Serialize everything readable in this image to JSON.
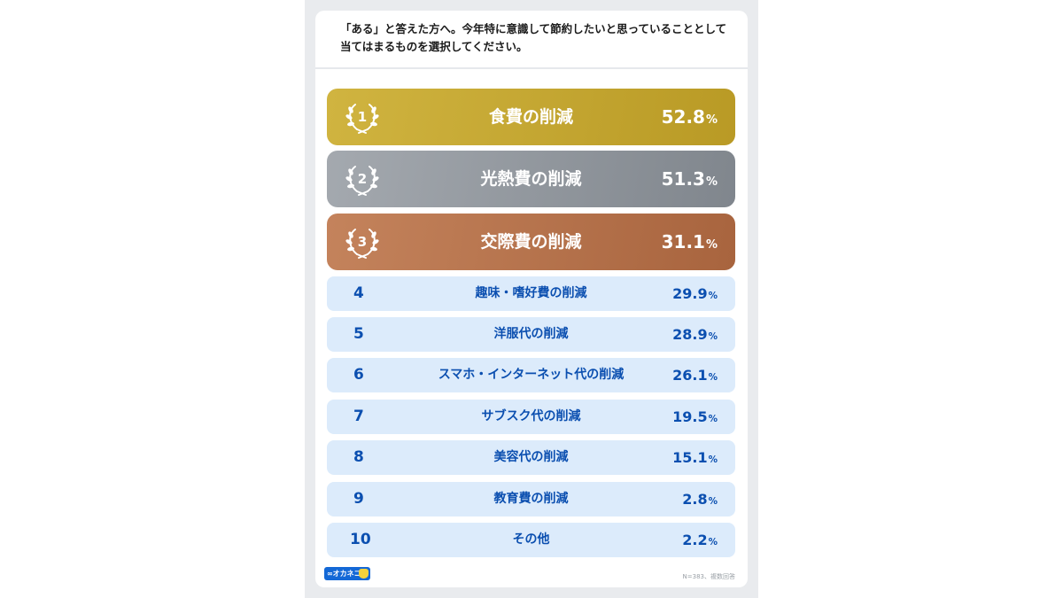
{
  "question": "「ある」と答えた方へ。今年特に意識して節約したいと思っていることとして当てはまるものを選択してください。",
  "chart_data": {
    "type": "bar",
    "categories": [
      "食費の削減",
      "光熱費の削減",
      "交際費の削減",
      "趣味・嗜好費の削減",
      "洋服代の削減",
      "スマホ・インターネット代の削減",
      "サブスク代の削減",
      "美容代の削減",
      "教育費の削減",
      "その他"
    ],
    "values": [
      52.8,
      51.3,
      31.1,
      29.9,
      28.9,
      26.1,
      19.5,
      15.1,
      2.8,
      2.2
    ],
    "unit": "%"
  },
  "rows": [
    {
      "rank": "1",
      "label": "食費の削減",
      "value": "52.8",
      "unit": "%"
    },
    {
      "rank": "2",
      "label": "光熱費の削減",
      "value": "51.3",
      "unit": "%"
    },
    {
      "rank": "3",
      "label": "交際費の削減",
      "value": "31.1",
      "unit": "%"
    },
    {
      "rank": "4",
      "label": "趣味・嗜好費の削減",
      "value": "29.9",
      "unit": "%"
    },
    {
      "rank": "5",
      "label": "洋服代の削減",
      "value": "28.9",
      "unit": "%"
    },
    {
      "rank": "6",
      "label": "スマホ・インターネット代の削減",
      "value": "26.1",
      "unit": "%"
    },
    {
      "rank": "7",
      "label": "サブスク代の削減",
      "value": "19.5",
      "unit": "%"
    },
    {
      "rank": "8",
      "label": "美容代の削減",
      "value": "15.1",
      "unit": "%"
    },
    {
      "rank": "9",
      "label": "教育費の削減",
      "value": "2.8",
      "unit": "%"
    },
    {
      "rank": "10",
      "label": "その他",
      "value": "2.2",
      "unit": "%"
    }
  ],
  "logo_text": "∞オカネコ",
  "footnote": "N=383、複数回答",
  "icons": {
    "badge": "laurel-wreath-icon",
    "logo": "okaneko-cat-icon"
  },
  "colors": {
    "gold": "#c3a62f",
    "silver": "#8f959b",
    "bronze": "#b5724a",
    "row_bg": "#dcebfb",
    "row_text": "#0b4fb0",
    "logo": "#1368d6"
  }
}
